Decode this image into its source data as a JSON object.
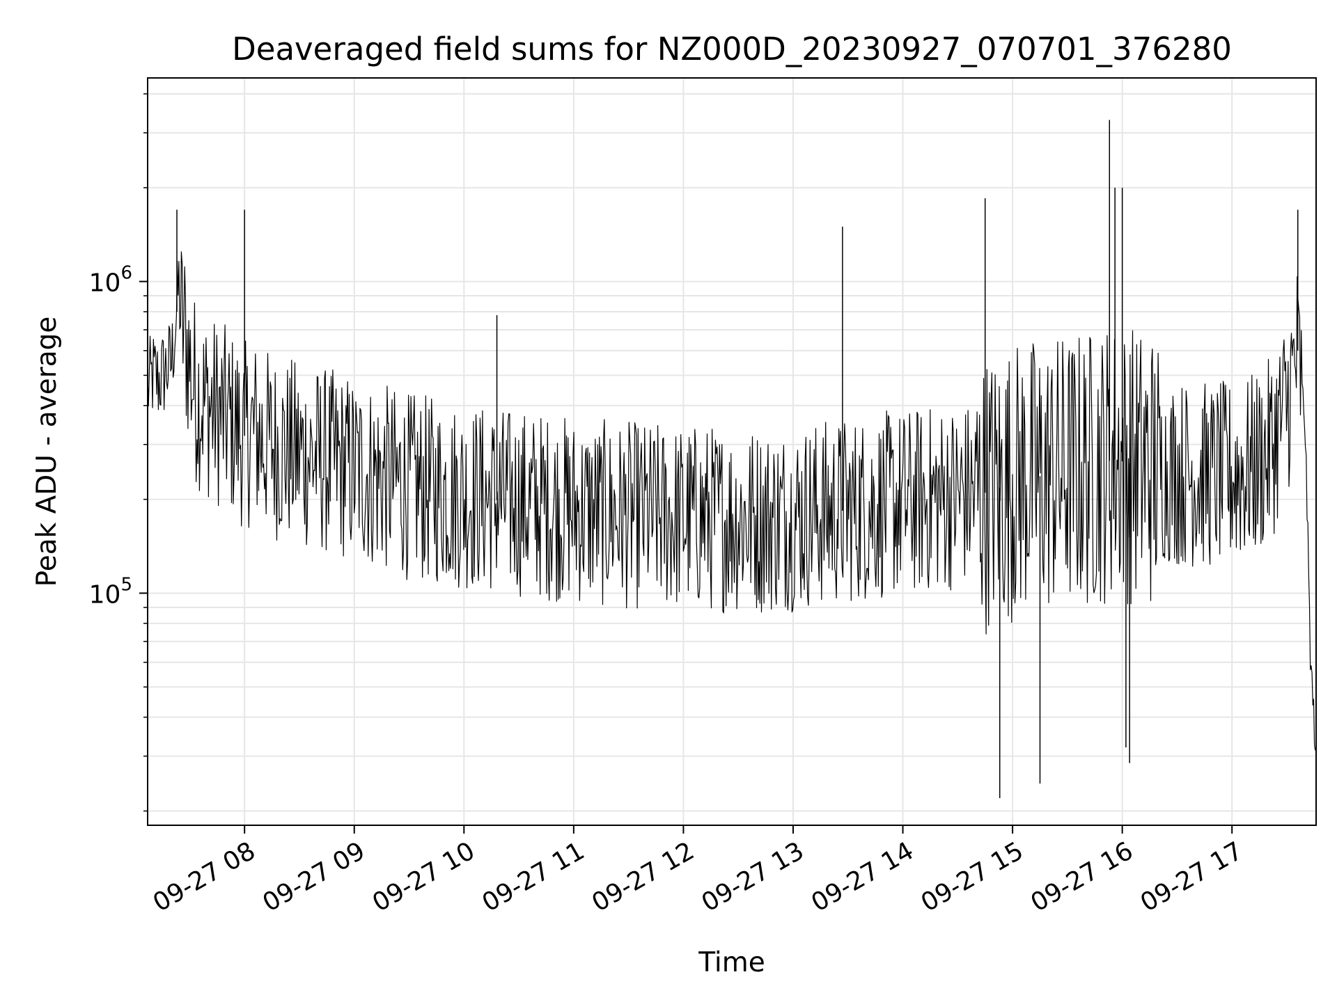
{
  "chart_data": {
    "type": "line",
    "title": "Deaveraged field sums for NZ000D_20230927_070701_376280",
    "xlabel": "Time",
    "ylabel": "Peak ADU - average",
    "y_scale": "log",
    "ylim": [
      18000,
      4500000
    ],
    "xlim": [
      "2023-09-27 07:07",
      "2023-09-27 17:46"
    ],
    "x_ticks": [
      {
        "value": "2023-09-27 08:00",
        "label": "09-27 08"
      },
      {
        "value": "2023-09-27 09:00",
        "label": "09-27 09"
      },
      {
        "value": "2023-09-27 10:00",
        "label": "09-27 10"
      },
      {
        "value": "2023-09-27 11:00",
        "label": "09-27 11"
      },
      {
        "value": "2023-09-27 12:00",
        "label": "09-27 12"
      },
      {
        "value": "2023-09-27 13:00",
        "label": "09-27 13"
      },
      {
        "value": "2023-09-27 14:00",
        "label": "09-27 14"
      },
      {
        "value": "2023-09-27 15:00",
        "label": "09-27 15"
      },
      {
        "value": "2023-09-27 16:00",
        "label": "09-27 16"
      },
      {
        "value": "2023-09-27 17:00",
        "label": "09-27 17"
      }
    ],
    "y_ticks": [
      {
        "value": 100000,
        "base": "10",
        "exp": "5"
      },
      {
        "value": 1000000,
        "base": "10",
        "exp": "6"
      }
    ],
    "grid": true,
    "line_color": "#000000",
    "series": [
      {
        "x": [
          "2023-09-27 07:07",
          "2023-09-27 07:10",
          "2023-09-27 07:13",
          "2023-09-27 07:17",
          "2023-09-27 07:20",
          "2023-09-27 07:23",
          "2023-09-27 07:24",
          "2023-09-27 07:25",
          "2023-09-27 07:27",
          "2023-09-27 07:29",
          "2023-09-27 07:31",
          "2023-09-27 07:33",
          "2023-09-27 07:36",
          "2023-09-27 07:40",
          "2023-09-27 07:45",
          "2023-09-27 07:50",
          "2023-09-27 07:55",
          "2023-09-27 08:00",
          "2023-09-27 08:05",
          "2023-09-27 08:10",
          "2023-09-27 08:15",
          "2023-09-27 08:20",
          "2023-09-27 08:30",
          "2023-09-27 08:40",
          "2023-09-27 08:50",
          "2023-09-27 09:00",
          "2023-09-27 09:10",
          "2023-09-27 09:20",
          "2023-09-27 09:30",
          "2023-09-27 09:40",
          "2023-09-27 09:50",
          "2023-09-27 10:00",
          "2023-09-27 10:15",
          "2023-09-27 10:30",
          "2023-09-27 10:45",
          "2023-09-27 11:00",
          "2023-09-27 11:15",
          "2023-09-27 11:30",
          "2023-09-27 11:45",
          "2023-09-27 12:00",
          "2023-09-27 12:15",
          "2023-09-27 12:30",
          "2023-09-27 12:45",
          "2023-09-27 13:00",
          "2023-09-27 13:15",
          "2023-09-27 13:30",
          "2023-09-27 13:45",
          "2023-09-27 14:00",
          "2023-09-27 14:15",
          "2023-09-27 14:30",
          "2023-09-27 14:45",
          "2023-09-27 14:55",
          "2023-09-27 15:00",
          "2023-09-27 15:10",
          "2023-09-27 15:20",
          "2023-09-27 15:30",
          "2023-09-27 15:40",
          "2023-09-27 15:50",
          "2023-09-27 15:55",
          "2023-09-27 16:00",
          "2023-09-27 16:10",
          "2023-09-27 16:20",
          "2023-09-27 16:30",
          "2023-09-27 16:40",
          "2023-09-27 16:50",
          "2023-09-27 17:00",
          "2023-09-27 17:10",
          "2023-09-27 17:20",
          "2023-09-27 17:30",
          "2023-09-27 17:36",
          "2023-09-27 17:40",
          "2023-09-27 17:43",
          "2023-09-27 17:46"
        ],
        "y": [
          450000,
          500000,
          480000,
          520000,
          550000,
          800000,
          1000000,
          750000,
          700000,
          600000,
          500000,
          450000,
          420000,
          400000,
          380000,
          360000,
          340000,
          320000,
          330000,
          310000,
          300000,
          290000,
          280000,
          270000,
          260000,
          250000,
          240000,
          230000,
          220000,
          215000,
          210000,
          205000,
          200000,
          195000,
          190000,
          185000,
          180000,
          178000,
          176000,
          175000,
          174000,
          173000,
          172000,
          175000,
          180000,
          185000,
          190000,
          195000,
          200000,
          205000,
          210000,
          220000,
          230000,
          235000,
          240000,
          245000,
          250000,
          260000,
          270000,
          265000,
          255000,
          250000,
          245000,
          240000,
          238000,
          240000,
          250000,
          280000,
          400000,
          600000,
          350000,
          60000,
          30000
        ]
      }
    ],
    "spikes": [
      {
        "x": "2023-09-27 07:23",
        "y": 1700000
      },
      {
        "x": "2023-09-27 08:00",
        "y": 1700000
      },
      {
        "x": "2023-09-27 10:18",
        "y": 780000
      },
      {
        "x": "2023-09-27 13:27",
        "y": 1500000
      },
      {
        "x": "2023-09-27 14:45",
        "y": 1850000
      },
      {
        "x": "2023-09-27 14:53",
        "y": 22000
      },
      {
        "x": "2023-09-27 15:15",
        "y": 24500
      },
      {
        "x": "2023-09-27 15:53",
        "y": 3300000
      },
      {
        "x": "2023-09-27 15:56",
        "y": 2000000
      },
      {
        "x": "2023-09-27 16:00",
        "y": 2000000
      },
      {
        "x": "2023-09-27 16:02",
        "y": 32000
      },
      {
        "x": "2023-09-27 16:04",
        "y": 28500
      },
      {
        "x": "2023-09-27 17:36",
        "y": 1700000
      }
    ]
  }
}
